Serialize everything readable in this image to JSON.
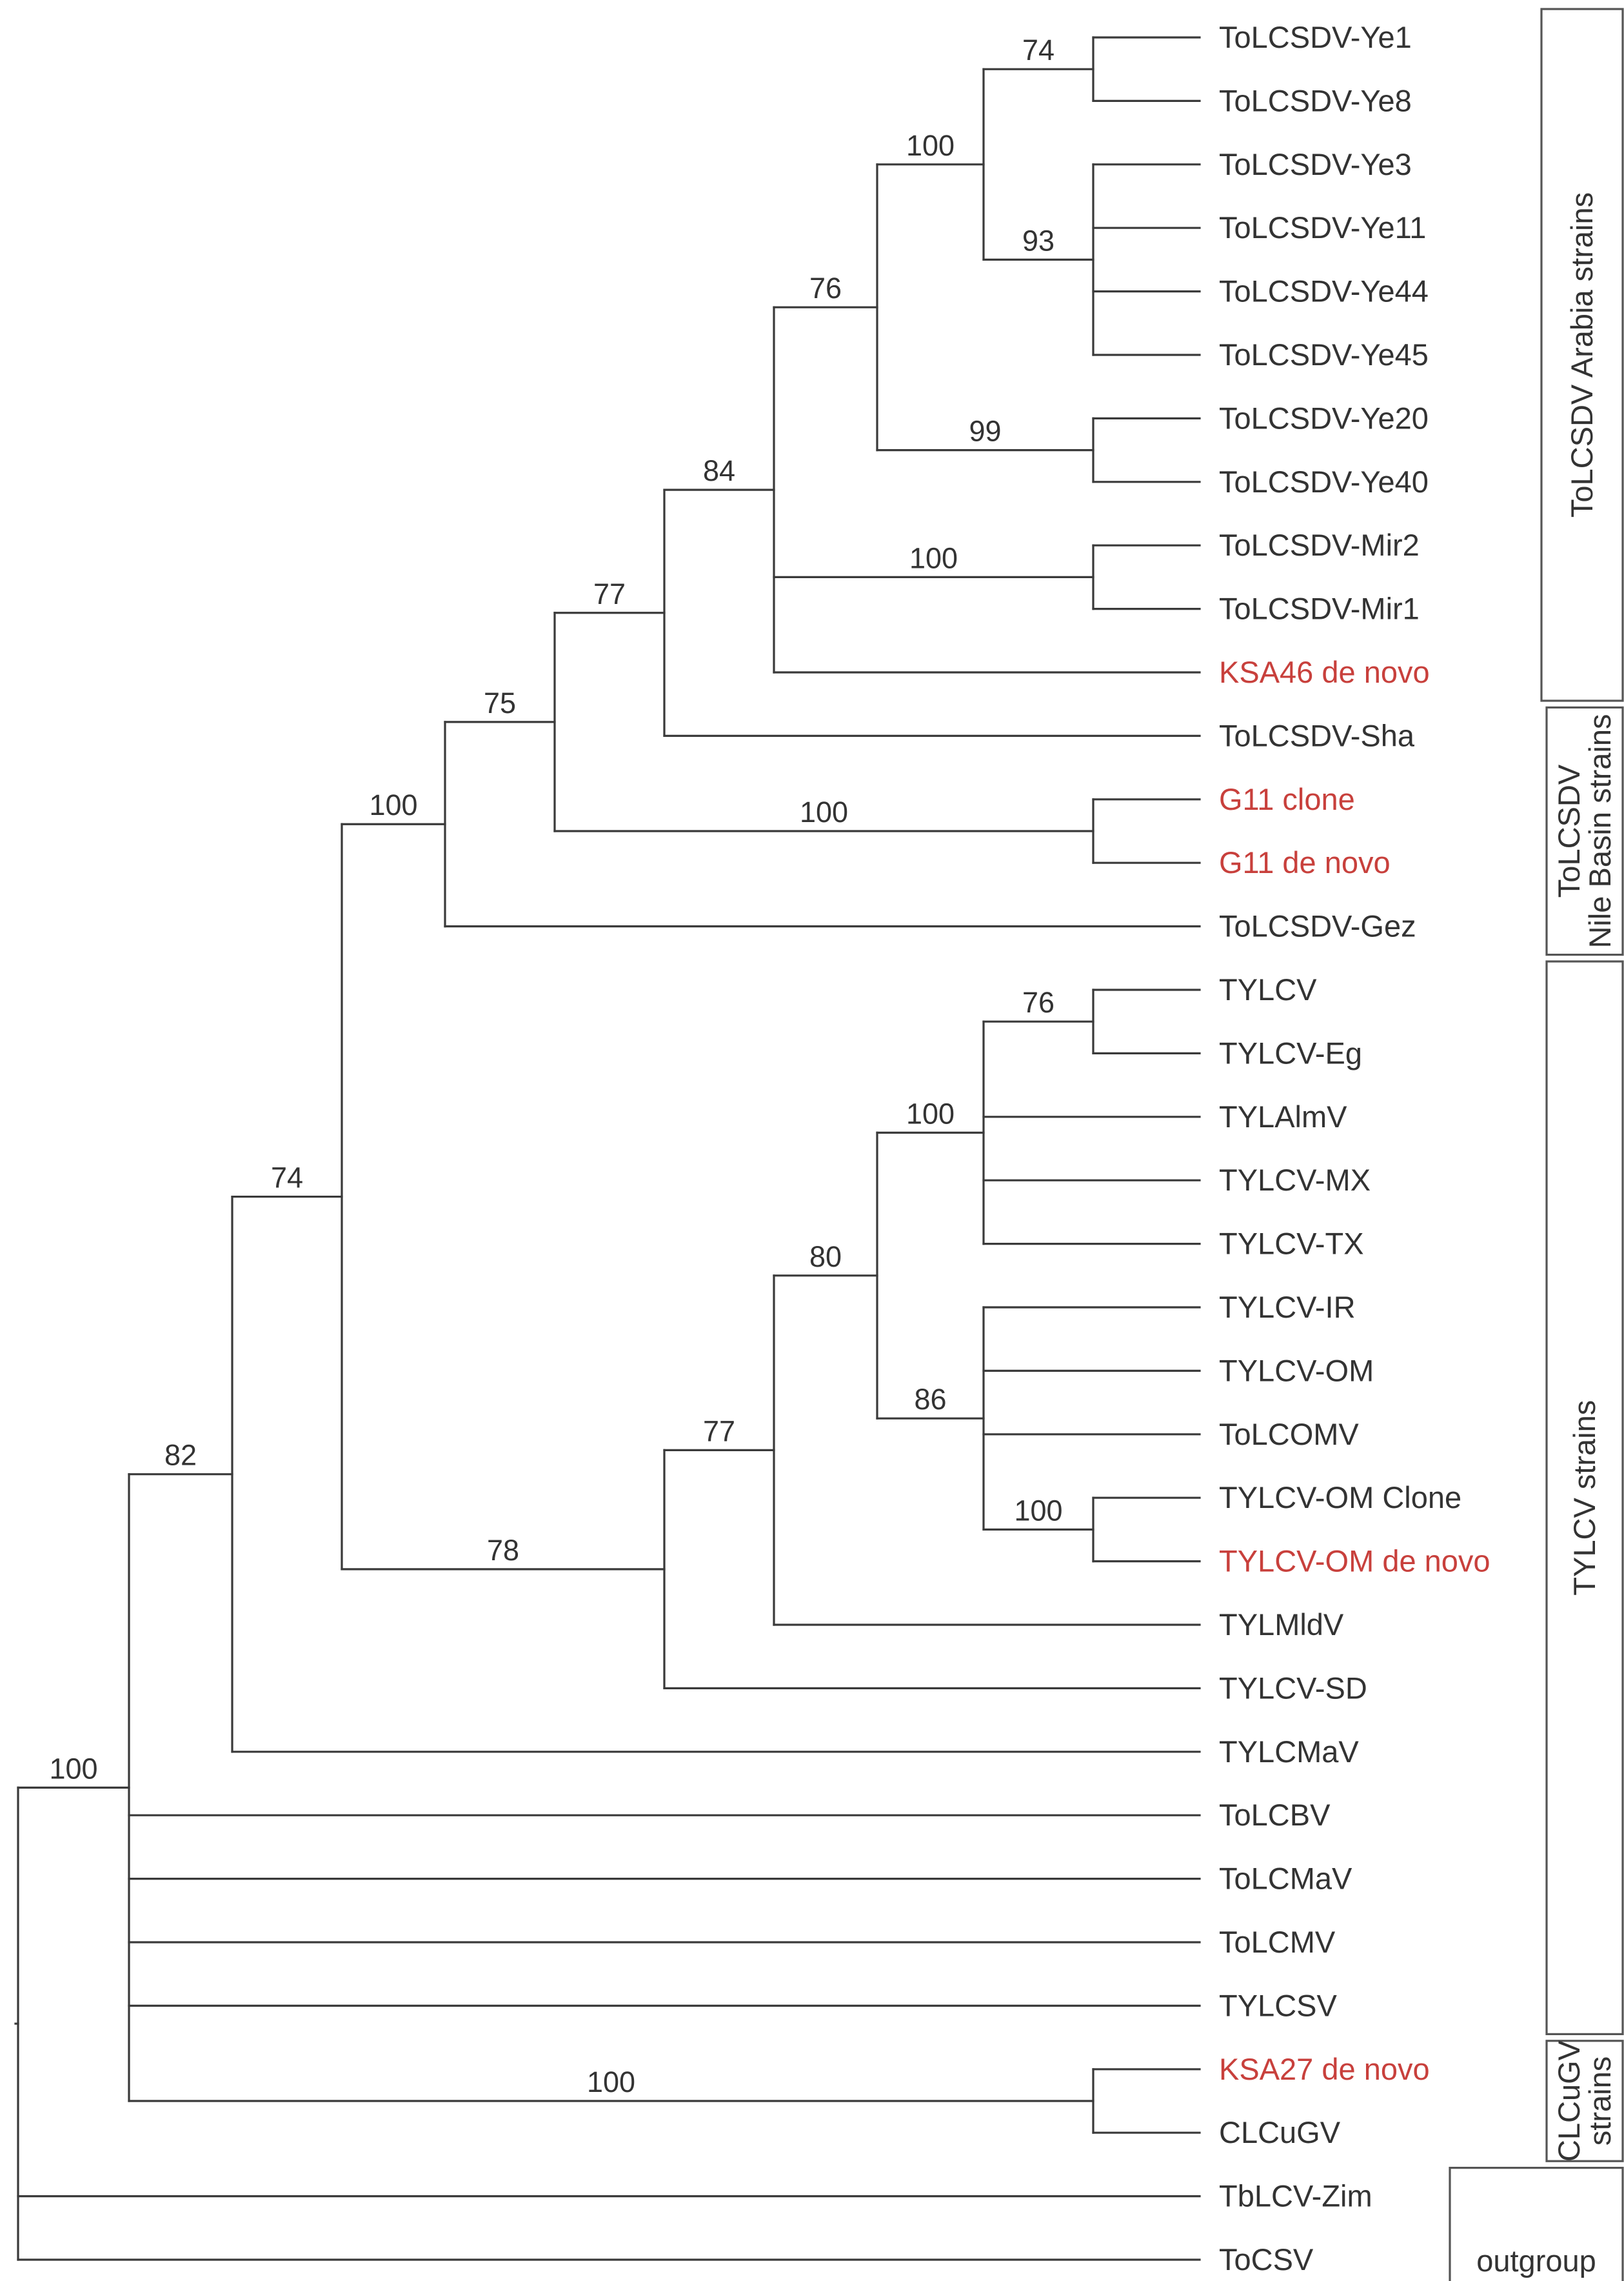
{
  "colors": {
    "branch": "#3a3a3a",
    "taxon": "#333333",
    "highlight": "#c8403c"
  },
  "taxa": [
    {
      "id": "ye1",
      "label": "ToLCSDV-Ye1",
      "highlight": false
    },
    {
      "id": "ye8",
      "label": "ToLCSDV-Ye8",
      "highlight": false
    },
    {
      "id": "ye3",
      "label": "ToLCSDV-Ye3",
      "highlight": false
    },
    {
      "id": "ye11",
      "label": "ToLCSDV-Ye11",
      "highlight": false
    },
    {
      "id": "ye44",
      "label": "ToLCSDV-Ye44",
      "highlight": false
    },
    {
      "id": "ye45",
      "label": "ToLCSDV-Ye45",
      "highlight": false
    },
    {
      "id": "ye20",
      "label": "ToLCSDV-Ye20",
      "highlight": false
    },
    {
      "id": "ye40",
      "label": "ToLCSDV-Ye40",
      "highlight": false
    },
    {
      "id": "mir2",
      "label": "ToLCSDV-Mir2",
      "highlight": false
    },
    {
      "id": "mir1",
      "label": "ToLCSDV-Mir1",
      "highlight": false
    },
    {
      "id": "ksa46",
      "label": "KSA46 de novo",
      "highlight": true
    },
    {
      "id": "sha",
      "label": "ToLCSDV-Sha",
      "highlight": false
    },
    {
      "id": "g11c",
      "label": "G11 clone",
      "highlight": true
    },
    {
      "id": "g11d",
      "label": "G11 de novo",
      "highlight": true
    },
    {
      "id": "gez",
      "label": "ToLCSDV-Gez",
      "highlight": false
    },
    {
      "id": "tylcv",
      "label": "TYLCV",
      "highlight": false
    },
    {
      "id": "eg",
      "label": "TYLCV-Eg",
      "highlight": false
    },
    {
      "id": "tylalmv",
      "label": "TYLAlmV",
      "highlight": false
    },
    {
      "id": "mx",
      "label": "TYLCV-MX",
      "highlight": false
    },
    {
      "id": "tx",
      "label": "TYLCV-TX",
      "highlight": false
    },
    {
      "id": "ir",
      "label": "TYLCV-IR",
      "highlight": false
    },
    {
      "id": "om",
      "label": "TYLCV-OM",
      "highlight": false
    },
    {
      "id": "tolcomv",
      "label": "ToLCOMV",
      "highlight": false
    },
    {
      "id": "omclone",
      "label": "TYLCV-OM Clone",
      "highlight": false
    },
    {
      "id": "omdenovo",
      "label": "TYLCV-OM de novo",
      "highlight": true
    },
    {
      "id": "tylmldv",
      "label": "TYLMldV",
      "highlight": false
    },
    {
      "id": "sd",
      "label": "TYLCV-SD",
      "highlight": false
    },
    {
      "id": "tylcmav",
      "label": "TYLCMaV",
      "highlight": false
    },
    {
      "id": "tolcbv",
      "label": "ToLCBV",
      "highlight": false
    },
    {
      "id": "tolcmav",
      "label": "ToLCMaV",
      "highlight": false
    },
    {
      "id": "tolcmv",
      "label": "ToLCMV",
      "highlight": false
    },
    {
      "id": "tylcsv",
      "label": "TYLCSV",
      "highlight": false
    },
    {
      "id": "ksa27",
      "label": "KSA27 de novo",
      "highlight": true
    },
    {
      "id": "clcugv",
      "label": "CLCuGV",
      "highlight": false
    },
    {
      "id": "tblcv",
      "label": "TbLCV-Zim",
      "highlight": false
    },
    {
      "id": "tocsv",
      "label": "ToCSV",
      "highlight": false
    }
  ],
  "tree": {
    "id": "root",
    "children": [
      {
        "id": "n100a",
        "support": "100",
        "children": [
          {
            "id": "n82",
            "support": "82",
            "children": [
              {
                "id": "n74",
                "support": "74",
                "children": [
                  {
                    "id": "n100b",
                    "support": "100",
                    "children": [
                      {
                        "id": "n75",
                        "support": "75",
                        "children": [
                          {
                            "id": "n77a",
                            "support": "77",
                            "children": [
                              {
                                "id": "n84",
                                "support": "84",
                                "children": [
                                  {
                                    "id": "n76a",
                                    "support": "76",
                                    "children": [
                                      {
                                        "id": "n100c",
                                        "support": "100",
                                        "children": [
                                          {
                                            "id": "n74b",
                                            "support": "74",
                                            "children": [
                                              {
                                                "taxon": "ye1"
                                              },
                                              {
                                                "taxon": "ye8"
                                              }
                                            ]
                                          },
                                          {
                                            "id": "n93",
                                            "support": "93",
                                            "children": [
                                              {
                                                "taxon": "ye3"
                                              },
                                              {
                                                "taxon": "ye11"
                                              },
                                              {
                                                "taxon": "ye44"
                                              },
                                              {
                                                "taxon": "ye45"
                                              }
                                            ]
                                          }
                                        ]
                                      },
                                      {
                                        "id": "n99",
                                        "support": "99",
                                        "children": [
                                          {
                                            "taxon": "ye20"
                                          },
                                          {
                                            "taxon": "ye40"
                                          }
                                        ]
                                      }
                                    ]
                                  },
                                  {
                                    "id": "n100d",
                                    "support": "100",
                                    "children": [
                                      {
                                        "taxon": "mir2"
                                      },
                                      {
                                        "taxon": "mir1"
                                      }
                                    ]
                                  },
                                  {
                                    "taxon": "ksa46"
                                  }
                                ]
                              },
                              {
                                "taxon": "sha"
                              }
                            ]
                          },
                          {
                            "id": "n100e",
                            "support": "100",
                            "children": [
                              {
                                "taxon": "g11c"
                              },
                              {
                                "taxon": "g11d"
                              }
                            ]
                          }
                        ]
                      },
                      {
                        "taxon": "gez"
                      }
                    ]
                  },
                  {
                    "id": "n78",
                    "support": "78",
                    "children": [
                      {
                        "id": "n77b",
                        "support": "77",
                        "children": [
                          {
                            "id": "n80",
                            "support": "80",
                            "children": [
                              {
                                "id": "n100f",
                                "support": "100",
                                "children": [
                                  {
                                    "id": "n76b",
                                    "support": "76",
                                    "children": [
                                      {
                                        "taxon": "tylcv"
                                      },
                                      {
                                        "taxon": "eg"
                                      }
                                    ]
                                  },
                                  {
                                    "taxon": "tylalmv"
                                  },
                                  {
                                    "taxon": "mx"
                                  },
                                  {
                                    "taxon": "tx"
                                  }
                                ]
                              },
                              {
                                "id": "n86",
                                "support": "86",
                                "children": [
                                  {
                                    "taxon": "ir"
                                  },
                                  {
                                    "taxon": "om"
                                  },
                                  {
                                    "taxon": "tolcomv"
                                  },
                                  {
                                    "id": "n100g",
                                    "support": "100",
                                    "children": [
                                      {
                                        "taxon": "omclone"
                                      },
                                      {
                                        "taxon": "omdenovo"
                                      }
                                    ]
                                  }
                                ]
                              }
                            ]
                          },
                          {
                            "taxon": "tylmldv"
                          }
                        ]
                      },
                      {
                        "taxon": "sd"
                      }
                    ]
                  }
                ]
              },
              {
                "taxon": "tylcmav"
              }
            ]
          },
          {
            "taxon": "tolcbv"
          },
          {
            "taxon": "tolcmav"
          },
          {
            "taxon": "tolcmv"
          },
          {
            "taxon": "tylcsv"
          },
          {
            "id": "n100h",
            "support": "100",
            "children": [
              {
                "taxon": "ksa27"
              },
              {
                "taxon": "clcugv"
              }
            ]
          }
        ]
      },
      {
        "taxon": "tblcv"
      },
      {
        "taxon": "tocsv"
      }
    ]
  },
  "groups": [
    {
      "id": "arabia",
      "lines": [
        "ToLCSDV Arabia strains"
      ],
      "first": "ye1",
      "last": "ksa46"
    },
    {
      "id": "nile",
      "lines": [
        "ToLCSDV",
        "Nile Basin strains"
      ],
      "first": "sha",
      "last": "gez"
    },
    {
      "id": "tylcv",
      "lines": [
        "TYLCV strains"
      ],
      "first": "tylcv",
      "last": "tylcsv"
    },
    {
      "id": "clcugv",
      "lines": [
        "CLCuGV",
        "strains"
      ],
      "first": "ksa27",
      "last": "clcugv"
    },
    {
      "id": "outgroup",
      "lines": [
        "outgroup"
      ],
      "first": "tblcv",
      "last": "tocsv"
    }
  ]
}
